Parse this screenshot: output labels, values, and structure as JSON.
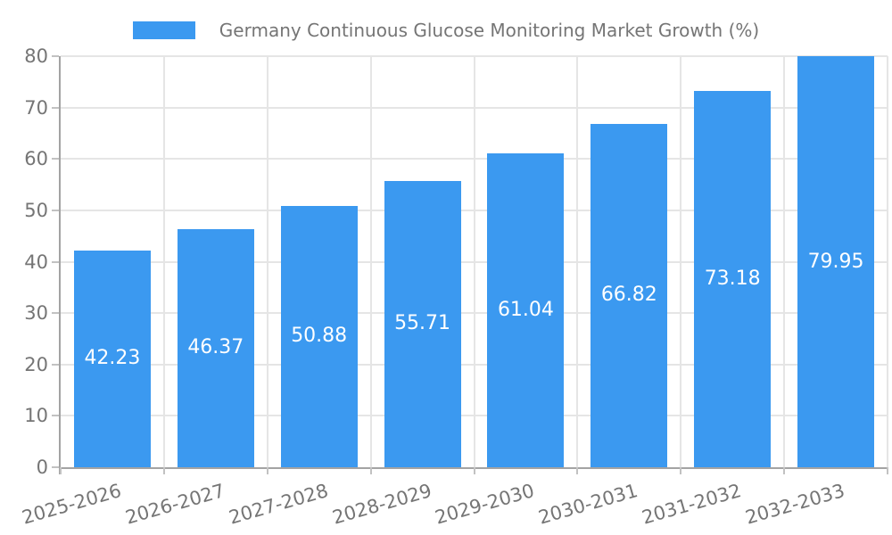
{
  "page": {
    "background": "#ffffff"
  },
  "legend": {
    "swatch_color": "#3b99f0",
    "label": "Germany Continuous Glucose Monitoring Market Growth (%)"
  },
  "chart_data": {
    "type": "bar",
    "title": "Germany Continuous Glucose Monitoring Market Growth (%)",
    "categories": [
      "2025-2026",
      "2026-2027",
      "2027-2028",
      "2028-2029",
      "2029-2030",
      "2030-2031",
      "2031-2032",
      "2032-2033"
    ],
    "values": [
      42.23,
      46.37,
      50.88,
      55.71,
      61.04,
      66.82,
      73.18,
      79.95
    ],
    "value_labels": [
      "42.23",
      "46.37",
      "50.88",
      "55.71",
      "61.04",
      "66.82",
      "73.18",
      "79.95"
    ],
    "xlabel": "",
    "ylabel": "",
    "ylim": [
      0,
      80
    ],
    "yticks": [
      0,
      10,
      20,
      30,
      40,
      50,
      60,
      70,
      80
    ],
    "grid": true,
    "legend_position": "top-center",
    "bar_color": "#3b99f0",
    "value_label_color": "#ffffff",
    "tick_label_color": "#757575",
    "title_color": "#757575",
    "grid_color": "#e5e5e5",
    "axis_line_color": "#a3a3a3",
    "tick_mark_color": "#c2c2c2",
    "x_label_rotation_deg": -16
  }
}
